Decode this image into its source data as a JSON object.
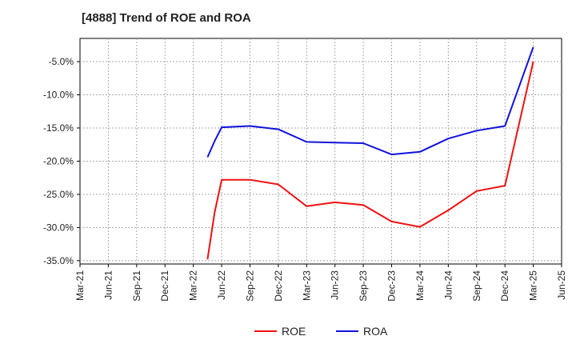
{
  "chart_data": {
    "type": "line",
    "title": "[4888]  Trend of ROE and ROA",
    "xlabel": "",
    "ylabel": "",
    "x_ticks": [
      "Mar-21",
      "Jun-21",
      "Sep-21",
      "Dec-21",
      "Mar-22",
      "Jun-22",
      "Sep-22",
      "Dec-22",
      "Mar-23",
      "Jun-23",
      "Sep-23",
      "Dec-23",
      "Mar-24",
      "Jun-24",
      "Sep-24",
      "Dec-24",
      "Mar-25",
      "Jun-25"
    ],
    "y_ticks": [
      "-5.0%",
      "-10.0%",
      "-15.0%",
      "-20.0%",
      "-25.0%",
      "-30.0%",
      "-35.0%"
    ],
    "y_tick_values": [
      -5,
      -10,
      -15,
      -20,
      -25,
      -30,
      -35
    ],
    "ylim": [
      -35.5,
      -1.5
    ],
    "grid": true,
    "legend_position": "bottom-center",
    "series": [
      {
        "name": "ROE",
        "color": "#ee1111",
        "x": [
          4.5,
          4.75,
          5.0,
          6.0,
          7.0,
          8.0,
          9.0,
          10.0,
          11.0,
          12.0,
          13.0,
          14.0,
          15.0,
          16.0
        ],
        "values": [
          -34.8,
          -27.8,
          -22.8,
          -22.8,
          -23.5,
          -26.8,
          -26.2,
          -26.6,
          -29.1,
          -29.9,
          -27.4,
          -24.5,
          -23.7,
          -5.0
        ]
      },
      {
        "name": "ROA",
        "color": "#1111dd",
        "x": [
          4.5,
          4.75,
          5.0,
          6.0,
          7.0,
          8.0,
          9.0,
          10.0,
          11.0,
          12.0,
          13.0,
          14.0,
          15.0,
          16.0
        ],
        "values": [
          -19.4,
          -17.0,
          -14.9,
          -14.7,
          -15.2,
          -17.1,
          -17.2,
          -17.3,
          -19.0,
          -18.6,
          -16.6,
          -15.4,
          -14.7,
          -2.8
        ]
      }
    ]
  }
}
